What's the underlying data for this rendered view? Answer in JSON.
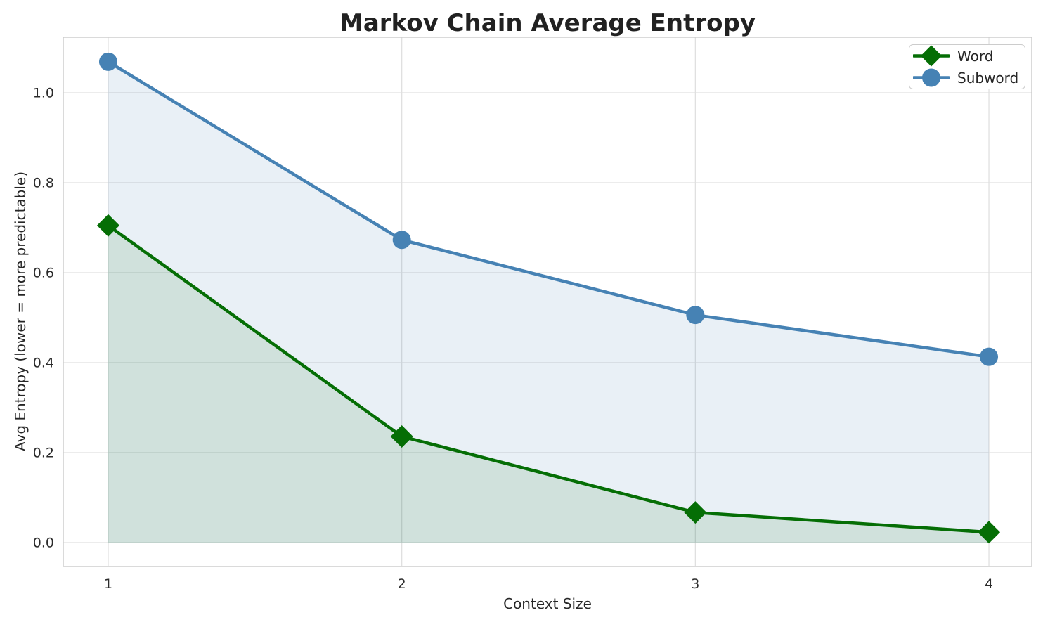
{
  "chart_data": {
    "type": "line",
    "title": "Markov Chain Average Entropy",
    "xlabel": "Context Size",
    "ylabel": "Avg Entropy (lower = more predictable)",
    "x": [
      1,
      2,
      3,
      4
    ],
    "series": [
      {
        "name": "Word",
        "marker": "diamond",
        "color": "#056e05",
        "fill_opacity": 0.11,
        "values": [
          0.705,
          0.236,
          0.067,
          0.023
        ]
      },
      {
        "name": "Subword",
        "marker": "circle",
        "color": "#4682b4",
        "fill_opacity": 0.12,
        "values": [
          1.069,
          0.673,
          0.506,
          0.413
        ]
      }
    ],
    "area_baseline": 0,
    "xticks": [
      "1",
      "2",
      "3",
      "4"
    ],
    "yticks": [
      "0.0",
      "0.2",
      "0.4",
      "0.6",
      "0.8",
      "1.0"
    ],
    "xlim": [
      0.8468,
      4.146
    ],
    "ylim": [
      -0.0531,
      1.1234
    ],
    "grid": true,
    "legend_position": "upper right"
  },
  "colors": {
    "background": "#ffffff",
    "grid": "#e0e0e0",
    "spine": "#cdcdcd",
    "text": "#262626",
    "word_green": "#056e05",
    "subword_blue": "#4682b4"
  }
}
